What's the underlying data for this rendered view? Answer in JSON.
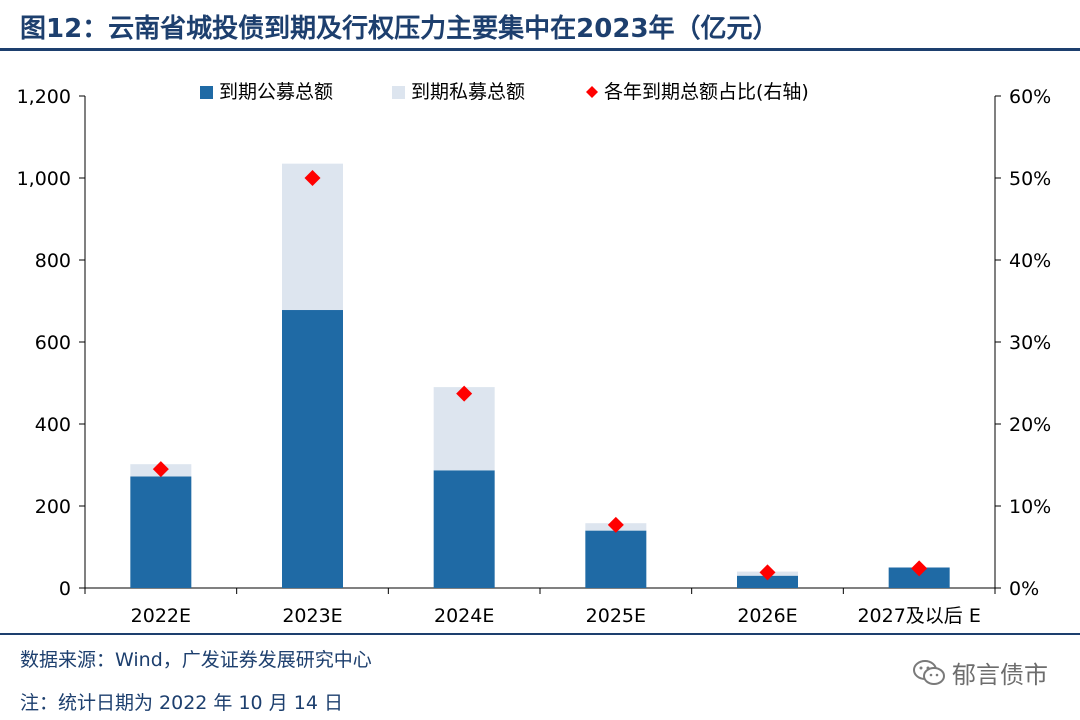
{
  "header": {
    "title": "图12：云南省城投债到期及行权压力主要集中在2023年（亿元）"
  },
  "footer": {
    "source": "数据来源：Wind，广发证券发展研究中心",
    "note": "注：统计日期为 2022 年 10 月 14 日",
    "watermark": "郁言债市"
  },
  "colors": {
    "public": "#1f6aa5",
    "private": "#dde5ef",
    "ratio": "#ff0000",
    "accent": "#1d3f6e"
  },
  "chart_data": {
    "type": "bar",
    "stacked": true,
    "categories": [
      "2022E",
      "2023E",
      "2024E",
      "2025E",
      "2026E",
      "2027及以后 E"
    ],
    "series": [
      {
        "name": "到期公募总额",
        "values": [
          272,
          678,
          287,
          140,
          30,
          50
        ]
      },
      {
        "name": "到期私募总额",
        "values": [
          30,
          357,
          203,
          18,
          10,
          0
        ]
      }
    ],
    "ratio_series": {
      "name": "各年到期总额占比(右轴)",
      "values": [
        14.5,
        50.0,
        23.7,
        7.7,
        1.9,
        2.4
      ]
    },
    "ylim": [
      0,
      1200
    ],
    "y_ticks": [
      "0",
      "200",
      "400",
      "600",
      "800",
      "1,000",
      "1,200"
    ],
    "y_tick_values": [
      0,
      200,
      400,
      600,
      800,
      1000,
      1200
    ],
    "y2lim": [
      0,
      60
    ],
    "y2_ticks": [
      "0%",
      "10%",
      "20%",
      "30%",
      "40%",
      "50%",
      "60%"
    ],
    "y2_tick_values": [
      0,
      10,
      20,
      30,
      40,
      50,
      60
    ],
    "legend": [
      "到期公募总额",
      "到期私募总额",
      "各年到期总额占比(右轴)"
    ]
  }
}
